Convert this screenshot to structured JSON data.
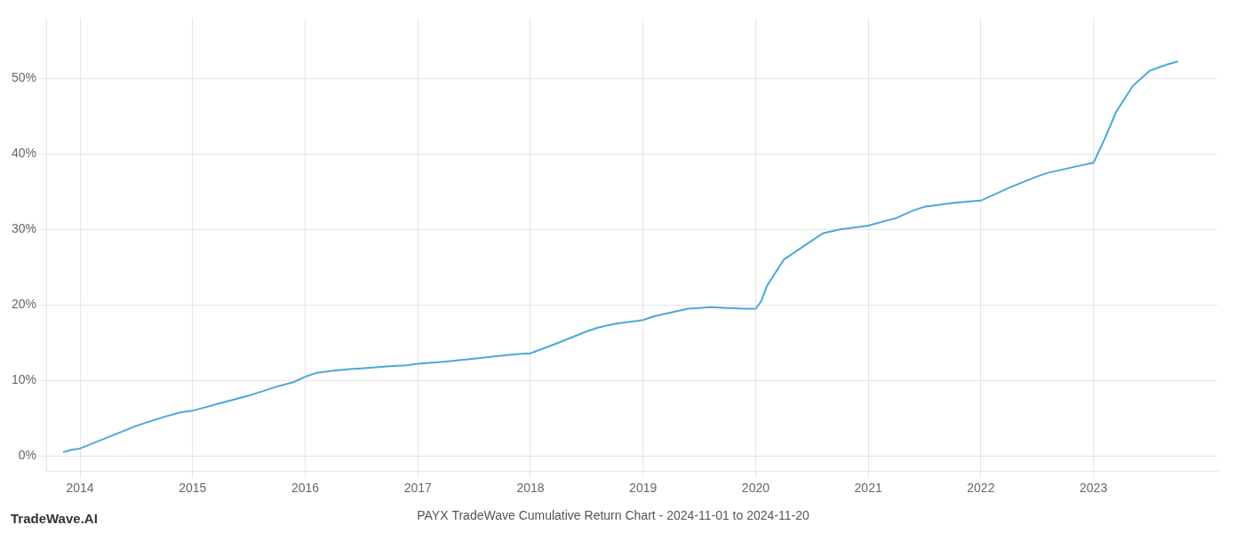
{
  "chart_data": {
    "type": "line",
    "title": "PAYX TradeWave Cumulative Return Chart - 2024-11-01 to 2024-11-20",
    "annotations": [
      "TradeWave.AI"
    ],
    "x": [
      2013.85,
      2013.92,
      2014.0,
      2014.25,
      2014.5,
      2014.75,
      2014.9,
      2015.0,
      2015.25,
      2015.5,
      2015.75,
      2015.9,
      2016.0,
      2016.1,
      2016.25,
      2016.4,
      2016.5,
      2016.75,
      2016.9,
      2017.0,
      2017.25,
      2017.5,
      2017.75,
      2017.9,
      2018.0,
      2018.25,
      2018.5,
      2018.6,
      2018.75,
      2018.9,
      2019.0,
      2019.1,
      2019.25,
      2019.4,
      2019.5,
      2019.6,
      2019.75,
      2019.9,
      2020.0,
      2020.05,
      2020.1,
      2020.25,
      2020.5,
      2020.6,
      2020.75,
      2020.9,
      2021.0,
      2021.25,
      2021.4,
      2021.5,
      2021.75,
      2021.9,
      2022.0,
      2022.25,
      2022.5,
      2022.6,
      2022.75,
      2022.9,
      2023.0,
      2023.1,
      2023.2,
      2023.35,
      2023.5,
      2023.65,
      2023.75
    ],
    "values": [
      0.5,
      0.8,
      1.0,
      2.5,
      4.0,
      5.2,
      5.8,
      6.0,
      7.0,
      8.0,
      9.2,
      9.8,
      10.5,
      11.0,
      11.3,
      11.5,
      11.6,
      11.9,
      12.0,
      12.2,
      12.5,
      12.9,
      13.3,
      13.5,
      13.6,
      15.0,
      16.5,
      17.0,
      17.5,
      17.8,
      18.0,
      18.5,
      19.0,
      19.5,
      19.6,
      19.7,
      19.6,
      19.5,
      19.5,
      20.5,
      22.5,
      26.0,
      28.5,
      29.5,
      30.0,
      30.3,
      30.5,
      31.5,
      32.5,
      33.0,
      33.5,
      33.7,
      33.8,
      35.5,
      37.0,
      37.5,
      38.0,
      38.5,
      38.8,
      42.0,
      45.5,
      49.0,
      51.0,
      51.8,
      52.2
    ],
    "color": "#4aa8d8",
    "xlim": [
      2013.7,
      2024.1
    ],
    "xticks": [
      2014,
      2015,
      2016,
      2017,
      2018,
      2019,
      2020,
      2021,
      2022,
      2023
    ],
    "ylim": [
      -2,
      58
    ],
    "yticks": [
      {
        "value": 0,
        "label": "0%"
      },
      {
        "value": 10,
        "label": "10%"
      },
      {
        "value": 20,
        "label": "20%"
      },
      {
        "value": 30,
        "label": "30%"
      },
      {
        "value": 40,
        "label": "40%"
      },
      {
        "value": 50,
        "label": "50%"
      }
    ],
    "grid": true
  }
}
